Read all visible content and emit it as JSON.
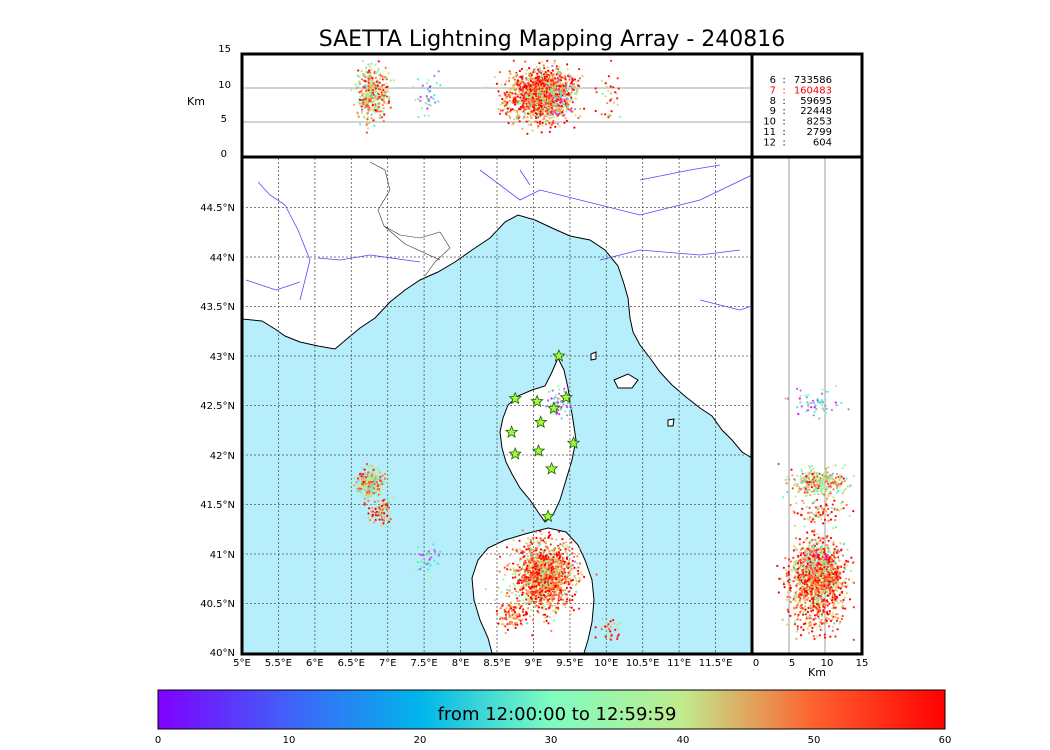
{
  "chart_data": {
    "type": "scatter",
    "title": "SAETTA Lightning Mapping Array - 240816",
    "colorbar_label": "from 12:00:00 to 12:59:59",
    "colorbar_ticks": [
      "0",
      "10",
      "20",
      "30",
      "40",
      "50",
      "60"
    ],
    "colorbar_range": [
      0,
      60
    ],
    "colormap": "rainbow",
    "top_panel": {
      "ylabel": "Km",
      "yticks": [
        "15",
        "10",
        "5",
        "0"
      ],
      "ylim": [
        0,
        15
      ],
      "xlim": [
        5.0,
        12.0
      ]
    },
    "right_panel": {
      "xlabel": "Km",
      "xticks": [
        "0",
        "5",
        "10",
        "15"
      ],
      "xlim": [
        0,
        15
      ],
      "ylim": [
        40.0,
        45.0
      ]
    },
    "map": {
      "xlim": [
        5.0,
        12.0
      ],
      "ylim": [
        40.0,
        45.0
      ],
      "xticks": [
        "5°E",
        "5.5°E",
        "6°E",
        "6.5°E",
        "7°E",
        "7.5°E",
        "8°E",
        "8.5°E",
        "9°E",
        "9.5°E",
        "10°E",
        "10.5°E",
        "11°E",
        "11.5°E"
      ],
      "yticks": [
        "44.5°N",
        "44°N",
        "43.5°N",
        "43°N",
        "42.5°N",
        "42°N",
        "41.5°N",
        "41°N",
        "40.5°N",
        "40°N"
      ],
      "sea_color": "#b7eefb",
      "land_color": "#ffffff",
      "grid": true
    },
    "station_counts": [
      {
        "station": "6",
        "count": "733586",
        "color": "#000000"
      },
      {
        "station": "7",
        "count": "160483",
        "color": "#ff0000"
      },
      {
        "station": "8",
        "count": "59695",
        "color": "#000000"
      },
      {
        "station": "9",
        "count": "22448",
        "color": "#000000"
      },
      {
        "station": "10",
        "count": "8253",
        "color": "#000000"
      },
      {
        "station": "11",
        "count": "2799",
        "color": "#000000"
      },
      {
        "station": "12",
        "count": "604",
        "color": "#000000"
      }
    ],
    "stations": [
      {
        "lon": 9.35,
        "lat": 43.0
      },
      {
        "lon": 8.75,
        "lat": 42.57
      },
      {
        "lon": 9.05,
        "lat": 42.54
      },
      {
        "lon": 9.45,
        "lat": 42.58
      },
      {
        "lon": 9.28,
        "lat": 42.47
      },
      {
        "lon": 9.1,
        "lat": 42.33
      },
      {
        "lon": 8.7,
        "lat": 42.23
      },
      {
        "lon": 9.55,
        "lat": 42.12
      },
      {
        "lon": 8.75,
        "lat": 42.01
      },
      {
        "lon": 9.07,
        "lat": 42.04
      },
      {
        "lon": 9.25,
        "lat": 41.86
      },
      {
        "lon": 9.2,
        "lat": 41.38
      }
    ],
    "clusters": [
      {
        "lon": 9.15,
        "lat": 40.78,
        "time_min": 50,
        "count": 1400
      },
      {
        "lon": 6.75,
        "lat": 41.73,
        "time_min": 40,
        "count": 300
      },
      {
        "lon": 6.9,
        "lat": 41.42,
        "time_min": 50,
        "count": 90
      },
      {
        "lon": 8.7,
        "lat": 40.38,
        "time_min": 55,
        "count": 90
      },
      {
        "lon": 9.35,
        "lat": 42.52,
        "time_min": 20,
        "count": 60
      },
      {
        "lon": 7.55,
        "lat": 40.93,
        "time_min": 22,
        "count": 40
      },
      {
        "lon": 10.05,
        "lat": 40.22,
        "time_min": 52,
        "count": 30
      }
    ]
  }
}
